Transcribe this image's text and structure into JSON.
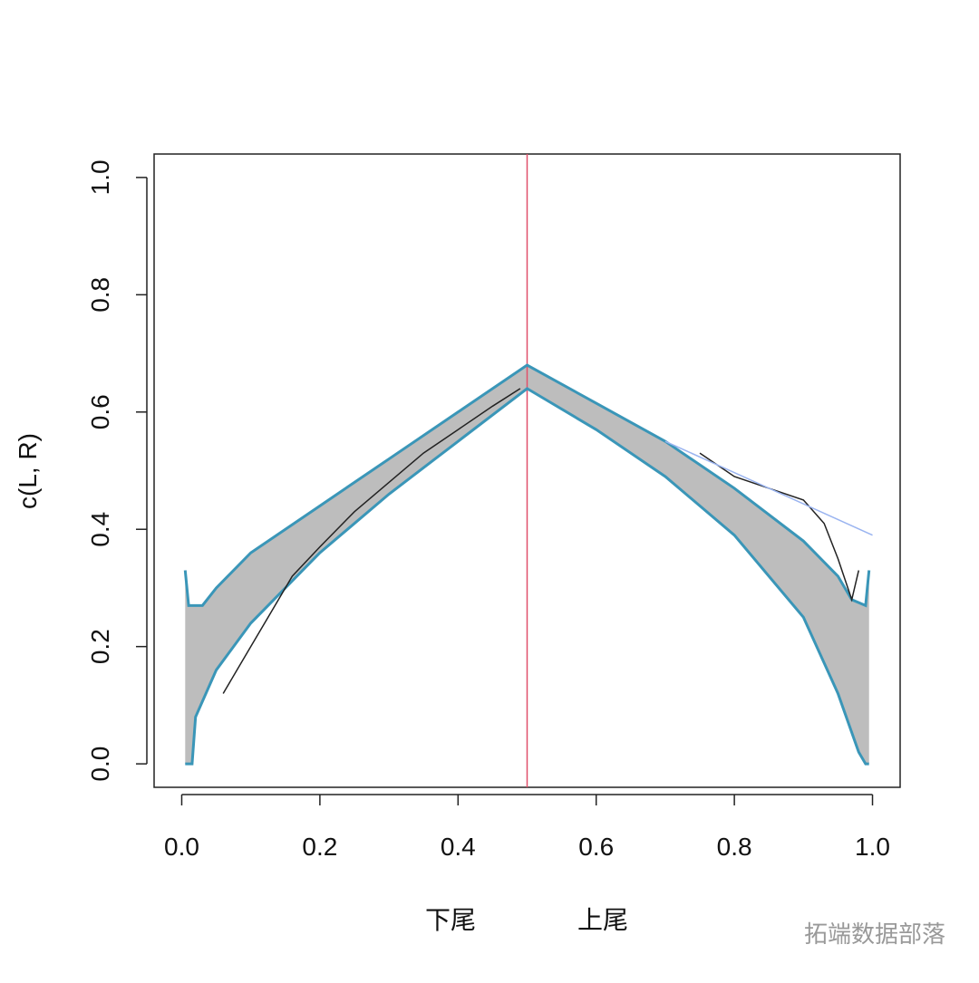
{
  "chart_data": {
    "type": "line",
    "y_label": "c(L, R)",
    "x_labels": [
      "下尾",
      "上尾"
    ],
    "annotation": "拓端数据部落",
    "xlim": [
      -0.04,
      1.04
    ],
    "ylim": [
      -0.04,
      1.04
    ],
    "xticks": [
      {
        "value": 0,
        "label": "0.0"
      },
      {
        "value": 0.2,
        "label": "0.2"
      },
      {
        "value": 0.4,
        "label": "0.4"
      },
      {
        "value": 0.6,
        "label": "0.6"
      },
      {
        "value": 0.8,
        "label": "0.8"
      },
      {
        "value": 1,
        "label": "1.0"
      }
    ],
    "yticks": [
      {
        "value": 0,
        "label": "0.0"
      },
      {
        "value": 0.2,
        "label": "0.2"
      },
      {
        "value": 0.4,
        "label": "0.4"
      },
      {
        "value": 0.6,
        "label": "0.6"
      },
      {
        "value": 0.8,
        "label": "0.8"
      },
      {
        "value": 1,
        "label": "1.0"
      }
    ],
    "vline": 0.5,
    "vline_color": "#e0506a",
    "band_color": "#bdbdbd",
    "series": [
      {
        "color": "#3a96b8",
        "x": [
          0.005,
          0.01,
          0.03,
          0.05,
          0.1,
          0.2,
          0.3,
          0.4,
          0.5,
          0.6,
          0.7,
          0.8,
          0.9,
          0.95,
          0.97,
          0.99,
          0.995
        ],
        "values": [
          0.33,
          0.27,
          0.27,
          0.3,
          0.36,
          0.44,
          0.52,
          0.6,
          0.68,
          0.615,
          0.55,
          0.47,
          0.38,
          0.32,
          0.28,
          0.27,
          0.33
        ]
      },
      {
        "color": "#3a96b8",
        "x": [
          0.005,
          0.015,
          0.02,
          0.05,
          0.1,
          0.2,
          0.3,
          0.4,
          0.5,
          0.6,
          0.7,
          0.8,
          0.9,
          0.95,
          0.98,
          0.99,
          0.995
        ],
        "values": [
          0,
          0,
          0.08,
          0.16,
          0.24,
          0.36,
          0.46,
          0.55,
          0.64,
          0.57,
          0.49,
          0.39,
          0.25,
          0.12,
          0.02,
          0,
          0
        ]
      },
      {
        "color": "#222222",
        "x": [
          0.06,
          0.08,
          0.1,
          0.13,
          0.16,
          0.2,
          0.25,
          0.3,
          0.35,
          0.4,
          0.45,
          0.49,
          0.7,
          0.75,
          0.8,
          0.85,
          0.9,
          0.93,
          0.95,
          0.97,
          0.98
        ],
        "values": [
          0.12,
          0.16,
          0.2,
          0.26,
          0.32,
          0.37,
          0.43,
          0.48,
          0.53,
          0.57,
          0.61,
          0.64,
          null,
          0.53,
          0.49,
          0.47,
          0.45,
          0.41,
          0.35,
          0.28,
          0.33
        ]
      },
      {
        "color": "#9ab4f0",
        "x": [
          0.7,
          1
        ],
        "values": [
          0.55,
          0.39
        ]
      }
    ]
  }
}
